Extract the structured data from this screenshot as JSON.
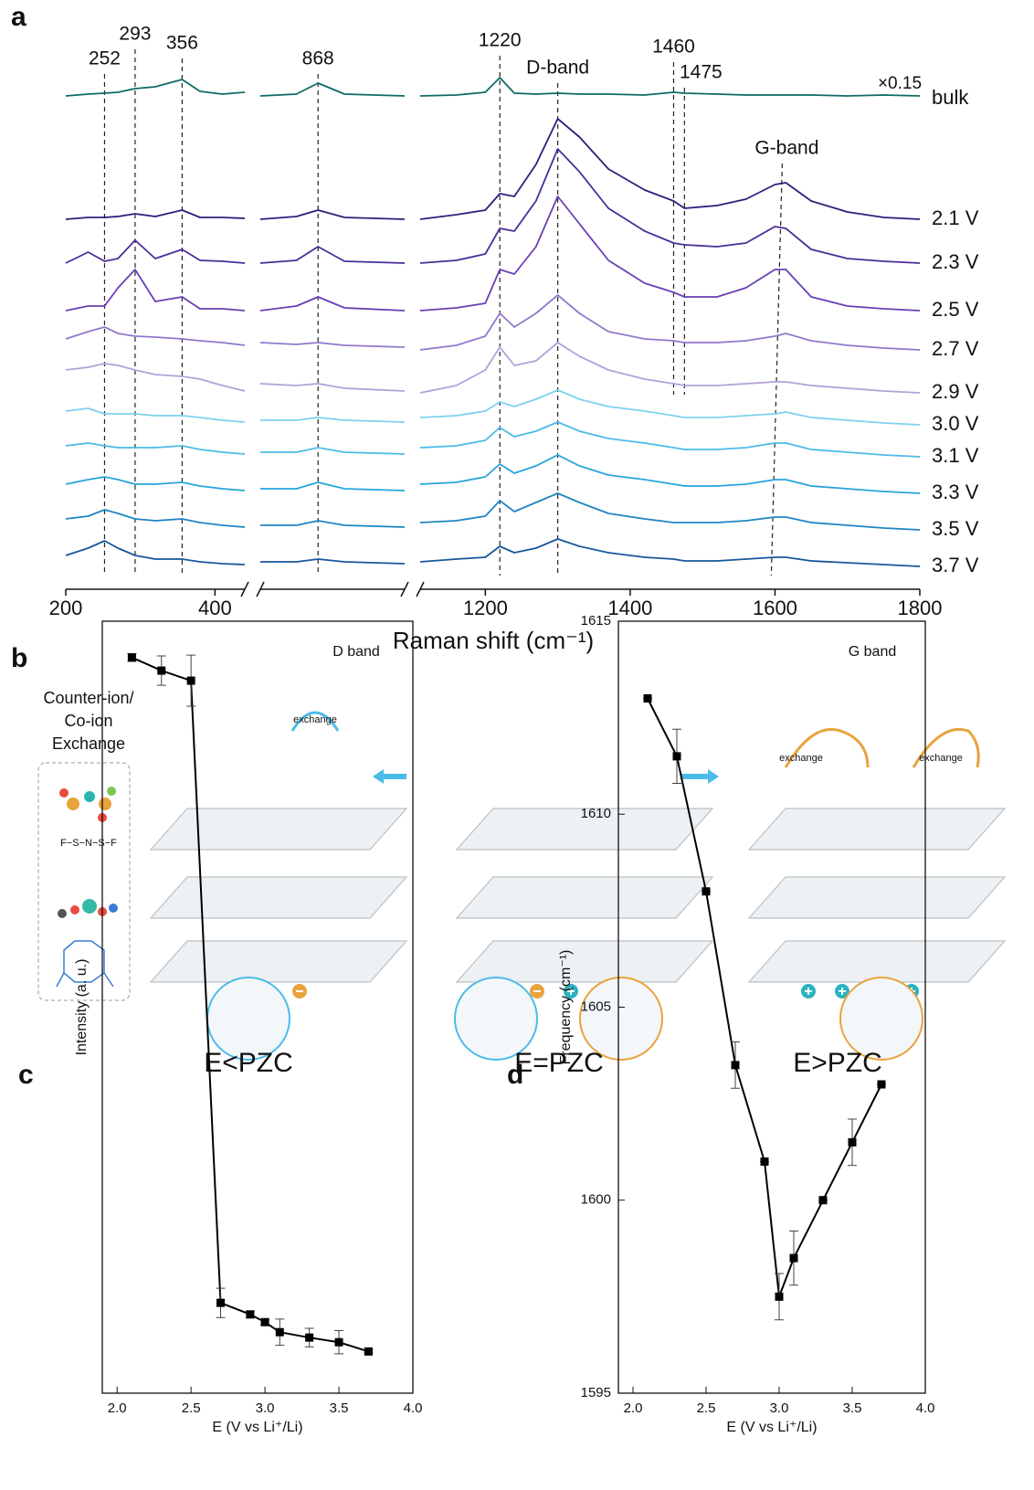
{
  "panel_labels": [
    "a",
    "b",
    "c",
    "d"
  ],
  "chart_data": [
    {
      "type": "spectra",
      "x_label": "Raman shift (cm⁻¹)",
      "x": [
        200,
        230,
        252,
        270,
        293,
        320,
        356,
        380,
        410,
        440,
        820,
        850,
        868,
        890,
        940,
        1110,
        1160,
        1200,
        1220,
        1240,
        1270,
        1300,
        1330,
        1370,
        1420,
        1460,
        1475,
        1520,
        1560,
        1600,
        1615,
        1650,
        1700,
        1750,
        1800
      ],
      "segments": [
        {
          "xlim": [
            200,
            440
          ],
          "xticks": [
            200,
            400
          ]
        },
        {
          "xlim": [
            820,
            940
          ],
          "xticks": []
        },
        {
          "xlim": [
            1110,
            1800
          ],
          "xticks": [
            1200,
            1400,
            1600,
            1800
          ]
        }
      ],
      "peaks": [
        252,
        293,
        356,
        868,
        1220,
        1460,
        1475
      ],
      "band_labels": [
        {
          "text": "D-band",
          "x": 1300
        },
        {
          "text": "G-band",
          "x": 1610
        }
      ],
      "scale_note": "×0.15",
      "series": [
        {
          "name": "bulk",
          "color": "#0f6b68",
          "values": [
            0,
            2,
            3,
            4,
            8,
            10,
            18,
            5,
            2,
            4,
            0,
            2,
            14,
            2,
            0,
            0,
            1,
            4,
            20,
            3,
            2,
            3,
            2,
            2,
            1,
            4,
            3,
            2,
            1,
            1,
            1,
            1,
            0,
            1,
            0
          ]
        },
        {
          "name": "2.1 V",
          "color": "#2e1f7a",
          "values": [
            0,
            2,
            2,
            3,
            6,
            3,
            10,
            2,
            2,
            1,
            0,
            3,
            10,
            2,
            0,
            0,
            5,
            10,
            28,
            25,
            60,
            110,
            90,
            55,
            32,
            20,
            12,
            15,
            22,
            38,
            40,
            20,
            8,
            2,
            0
          ]
        },
        {
          "name": "2.3 V",
          "color": "#4a2d99",
          "values": [
            0,
            12,
            2,
            5,
            25,
            5,
            15,
            3,
            2,
            0,
            0,
            3,
            18,
            2,
            0,
            0,
            3,
            10,
            38,
            35,
            68,
            125,
            100,
            60,
            35,
            22,
            20,
            18,
            22,
            40,
            38,
            15,
            5,
            2,
            0
          ]
        },
        {
          "name": "2.5 V",
          "color": "#6a3fb5",
          "values": [
            0,
            5,
            5,
            25,
            45,
            10,
            15,
            2,
            2,
            0,
            0,
            5,
            15,
            3,
            0,
            0,
            3,
            8,
            45,
            40,
            70,
            125,
            95,
            55,
            30,
            20,
            15,
            15,
            25,
            45,
            45,
            15,
            5,
            2,
            0
          ]
        },
        {
          "name": "2.7 V",
          "color": "#9278cc",
          "values": [
            12,
            20,
            25,
            18,
            15,
            14,
            12,
            10,
            8,
            5,
            8,
            6,
            8,
            5,
            3,
            0,
            5,
            15,
            40,
            25,
            40,
            60,
            40,
            20,
            12,
            10,
            8,
            8,
            10,
            15,
            18,
            10,
            5,
            2,
            0
          ]
        },
        {
          "name": "2.9 V",
          "color": "#b4a0dc",
          "values": [
            25,
            28,
            32,
            30,
            25,
            20,
            18,
            15,
            8,
            2,
            10,
            8,
            10,
            5,
            2,
            0,
            8,
            25,
            50,
            30,
            35,
            55,
            40,
            25,
            15,
            10,
            8,
            8,
            10,
            12,
            12,
            8,
            5,
            2,
            0
          ]
        },
        {
          "name": "3.0 V",
          "color": "#7fd0ef",
          "values": [
            15,
            18,
            12,
            12,
            12,
            10,
            10,
            8,
            5,
            3,
            5,
            5,
            8,
            5,
            3,
            8,
            10,
            15,
            25,
            20,
            28,
            38,
            28,
            20,
            15,
            10,
            8,
            8,
            10,
            12,
            14,
            8,
            5,
            2,
            0
          ]
        },
        {
          "name": "3.1 V",
          "color": "#4cbbe8",
          "values": [
            12,
            15,
            12,
            10,
            10,
            10,
            12,
            8,
            5,
            3,
            5,
            5,
            10,
            5,
            3,
            10,
            12,
            18,
            32,
            22,
            28,
            38,
            28,
            20,
            15,
            10,
            8,
            8,
            10,
            15,
            15,
            8,
            5,
            2,
            0
          ]
        },
        {
          "name": "3.3 V",
          "color": "#28a3dc",
          "values": [
            10,
            15,
            18,
            15,
            10,
            10,
            12,
            8,
            5,
            3,
            5,
            5,
            12,
            5,
            3,
            10,
            12,
            18,
            32,
            22,
            30,
            42,
            30,
            20,
            15,
            10,
            8,
            8,
            10,
            15,
            15,
            8,
            5,
            2,
            0
          ]
        },
        {
          "name": "3.5 V",
          "color": "#1f85c3",
          "values": [
            12,
            15,
            22,
            18,
            12,
            10,
            12,
            8,
            5,
            3,
            5,
            5,
            10,
            5,
            3,
            8,
            10,
            15,
            32,
            20,
            30,
            40,
            30,
            18,
            12,
            8,
            8,
            8,
            10,
            14,
            14,
            8,
            5,
            2,
            0
          ]
        },
        {
          "name": "3.7 V",
          "color": "#18579a",
          "values": [
            12,
            20,
            28,
            20,
            12,
            8,
            8,
            5,
            3,
            2,
            5,
            5,
            8,
            5,
            3,
            5,
            8,
            10,
            22,
            15,
            20,
            30,
            22,
            15,
            10,
            8,
            6,
            6,
            8,
            10,
            10,
            6,
            4,
            2,
            0
          ]
        }
      ]
    },
    {
      "type": "line",
      "x_label": "E (V vs Li⁺/Li)",
      "y_label": "Intensity (a. u.)",
      "inset_label": "D band",
      "color": "#000000",
      "x": [
        2.1,
        2.3,
        2.5,
        2.7,
        2.9,
        3.0,
        3.1,
        3.3,
        3.5,
        3.7
      ],
      "values": [
        95.3,
        93.6,
        92.3,
        11.7,
        10.2,
        9.2,
        7.9,
        7.2,
        6.6,
        5.4
      ],
      "errors": [
        0.5,
        1.9,
        3.3,
        1.9,
        0.4,
        0.3,
        1.7,
        1.2,
        1.5,
        0.2
      ],
      "xlim": [
        1.9,
        4.0
      ],
      "xticks": [
        {
          "value": 2,
          "label": "2.0"
        },
        2.5,
        {
          "value": 3,
          "label": "3.0"
        },
        3.5,
        {
          "value": 4,
          "label": "4.0"
        }
      ],
      "ylim": [
        0,
        100
      ]
    },
    {
      "type": "line",
      "x_label": "E (V vs Li⁺/Li)",
      "y_label": "Frequency (cm⁻¹)",
      "inset_label": "G band",
      "color": "#000000",
      "x": [
        2.1,
        2.3,
        2.5,
        2.7,
        2.9,
        3.0,
        3.1,
        3.3,
        3.5,
        3.7
      ],
      "values": [
        1613,
        1611.5,
        1608,
        1603.5,
        1601,
        1597.5,
        1598.5,
        1600,
        1601.5,
        1603
      ],
      "errors": [
        0,
        0.7,
        0,
        0.6,
        0,
        0.6,
        0.7,
        0,
        0.6,
        0
      ],
      "xlim": [
        1.9,
        4.0
      ],
      "xticks": [
        {
          "value": 2,
          "label": "2.0"
        },
        2.5,
        {
          "value": 3,
          "label": "3.0"
        },
        3.5,
        {
          "value": 4,
          "label": "4.0"
        }
      ],
      "ylim": [
        1595,
        1615
      ],
      "yticks": [
        1595,
        1600,
        1605,
        1610,
        1615
      ]
    }
  ],
  "diagram": {
    "legend_title": [
      "Counter-ion/",
      "Co-ion",
      "Exchange"
    ],
    "formula": "F−S−N−S−F",
    "exchange_labels": [
      "exchange",
      "exchange",
      "exchange"
    ],
    "states": [
      "E<PZC",
      "E=PZC",
      "E>PZC"
    ]
  }
}
